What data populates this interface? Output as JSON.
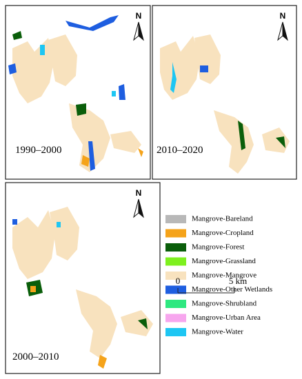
{
  "panels": [
    {
      "label": "1990–2000",
      "north": "N"
    },
    {
      "label": "2010–2020",
      "north": "N"
    },
    {
      "label": "2000–2010",
      "north": "N"
    }
  ],
  "legend": {
    "items": [
      {
        "label": "Mangrove-Bareland",
        "color": "#b8b8b8"
      },
      {
        "label": "Mangrove-Cropland",
        "color": "#f5a31a"
      },
      {
        "label": "Mangrove-Forest",
        "color": "#0a5e0a"
      },
      {
        "label": "Mangrove-Grassland",
        "color": "#7ef01e"
      },
      {
        "label": "Mangrove-Mangrove",
        "color": "#f8e2be"
      },
      {
        "label": "Mangrove-Other Wetlands",
        "color": "#1e5ee0"
      },
      {
        "label": "Mangrove-Shrubland",
        "color": "#2ee880"
      },
      {
        "label": "Mangrove-Urban Area",
        "color": "#f7a6ee"
      },
      {
        "label": "Mangrove-Water",
        "color": "#1ec6f3"
      }
    ]
  },
  "scale_bar": {
    "start": "0",
    "end": "5 km"
  }
}
